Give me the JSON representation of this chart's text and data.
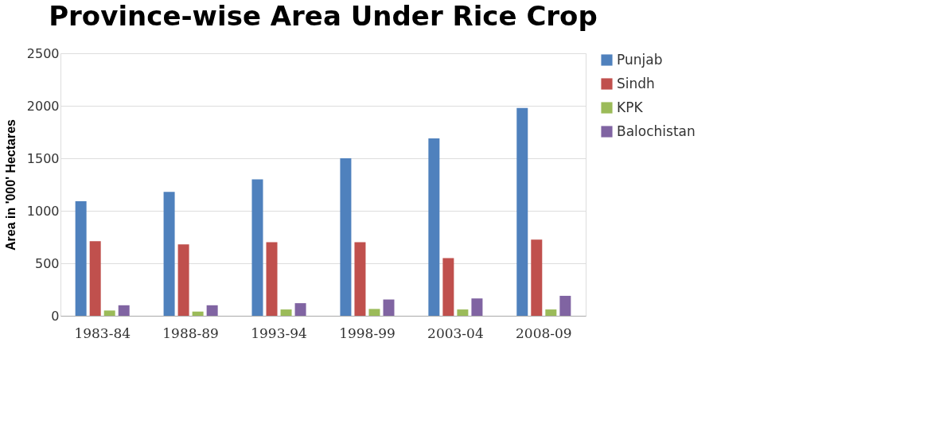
{
  "chart_data": {
    "type": "bar",
    "title": "Province-wise Area Under Rice Crop",
    "ylabel": "Area in '000' Hectares",
    "categories": [
      "1983-84",
      "1988-89",
      "1993-94",
      "1998-99",
      "2003-04",
      "2008-09"
    ],
    "series": [
      {
        "name": "Punjab",
        "color": "#4f81bd",
        "values": [
          1090,
          1180,
          1300,
          1500,
          1690,
          1980
        ]
      },
      {
        "name": "Sindh",
        "color": "#c0504d",
        "values": [
          710,
          680,
          700,
          700,
          550,
          725
        ]
      },
      {
        "name": "KPK",
        "color": "#9bbb59",
        "values": [
          50,
          40,
          60,
          65,
          60,
          60
        ]
      },
      {
        "name": "Balochistan",
        "color": "#8064a2",
        "values": [
          100,
          100,
          120,
          155,
          165,
          190
        ]
      }
    ],
    "ylim": [
      0,
      2500
    ],
    "yticks": [
      0,
      500,
      1000,
      1500,
      2000,
      2500
    ],
    "grid": "y",
    "legend": "right"
  }
}
